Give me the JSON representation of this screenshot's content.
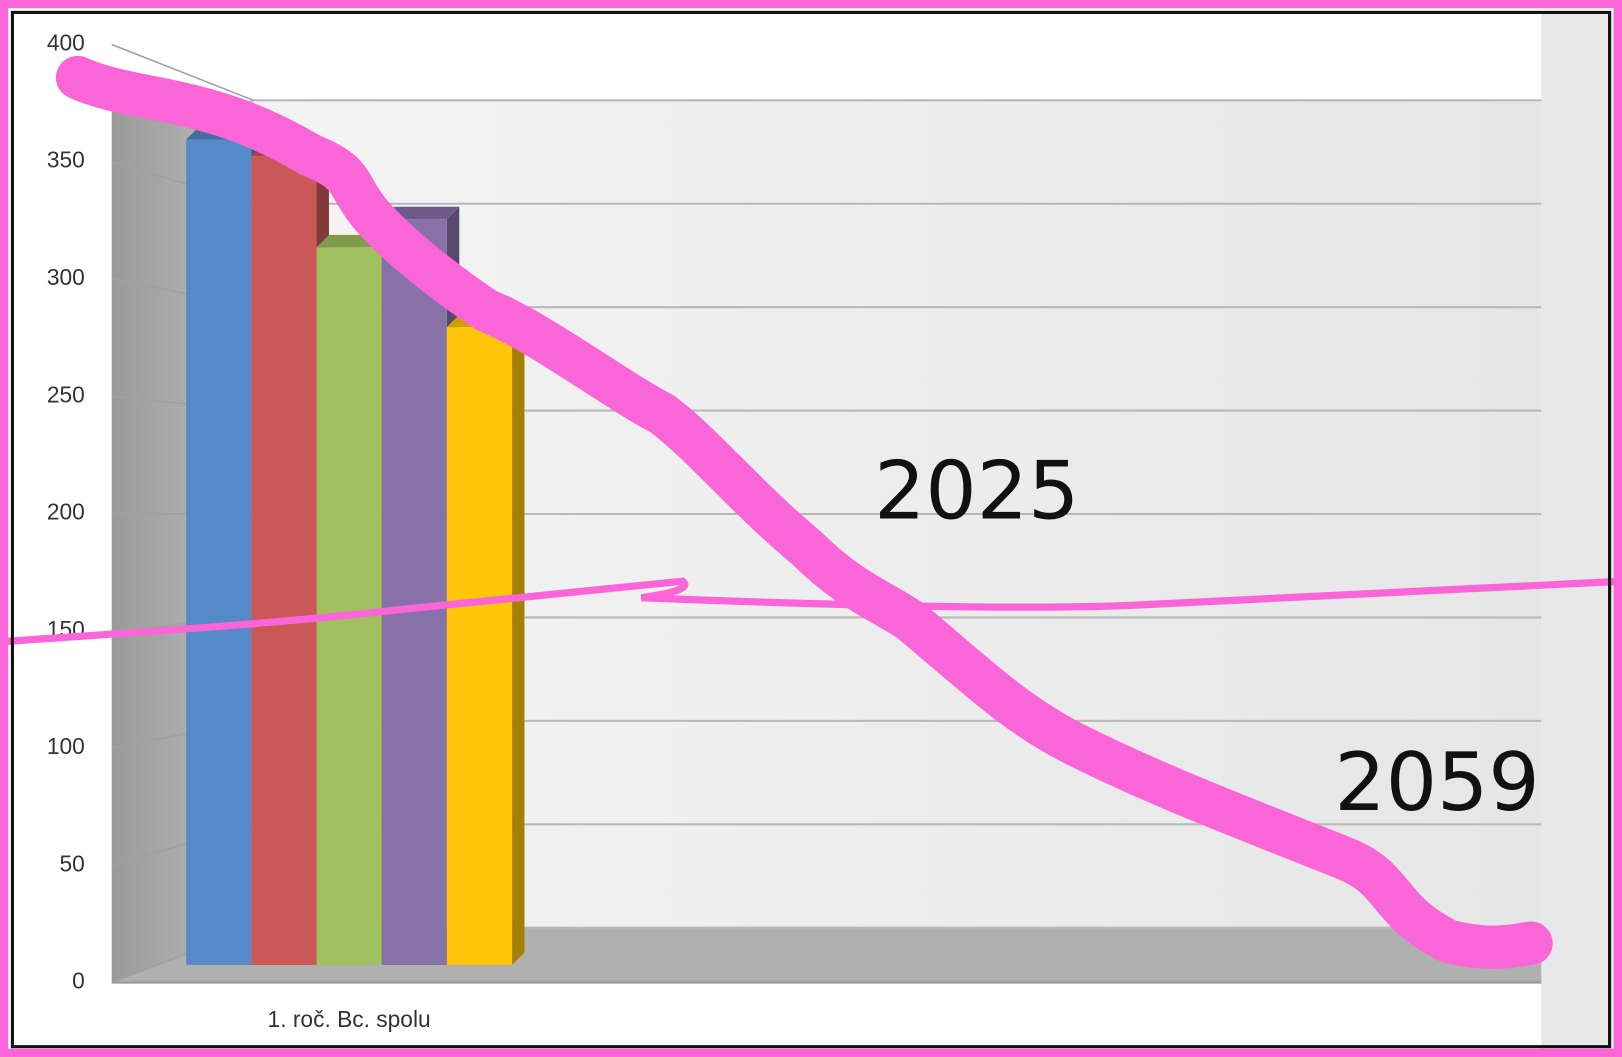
{
  "chart_data": {
    "type": "bar",
    "categories": [
      "1. roč. Bc. spolu"
    ],
    "series": [
      {
        "color": "#5589c8",
        "values": [
          352
        ]
      },
      {
        "color": "#c95856",
        "values": [
          345
        ]
      },
      {
        "color": "#a1c05f",
        "values": [
          306
        ]
      },
      {
        "color": "#8870a8",
        "values": [
          318
        ]
      },
      {
        "color": "#ffc508",
        "values": [
          272
        ]
      }
    ],
    "ylim": [
      0,
      400
    ],
    "yticks": [
      0,
      50,
      100,
      150,
      200,
      250,
      300,
      350,
      400
    ],
    "grid": true,
    "annotations": [
      "2025",
      "2059"
    ]
  }
}
